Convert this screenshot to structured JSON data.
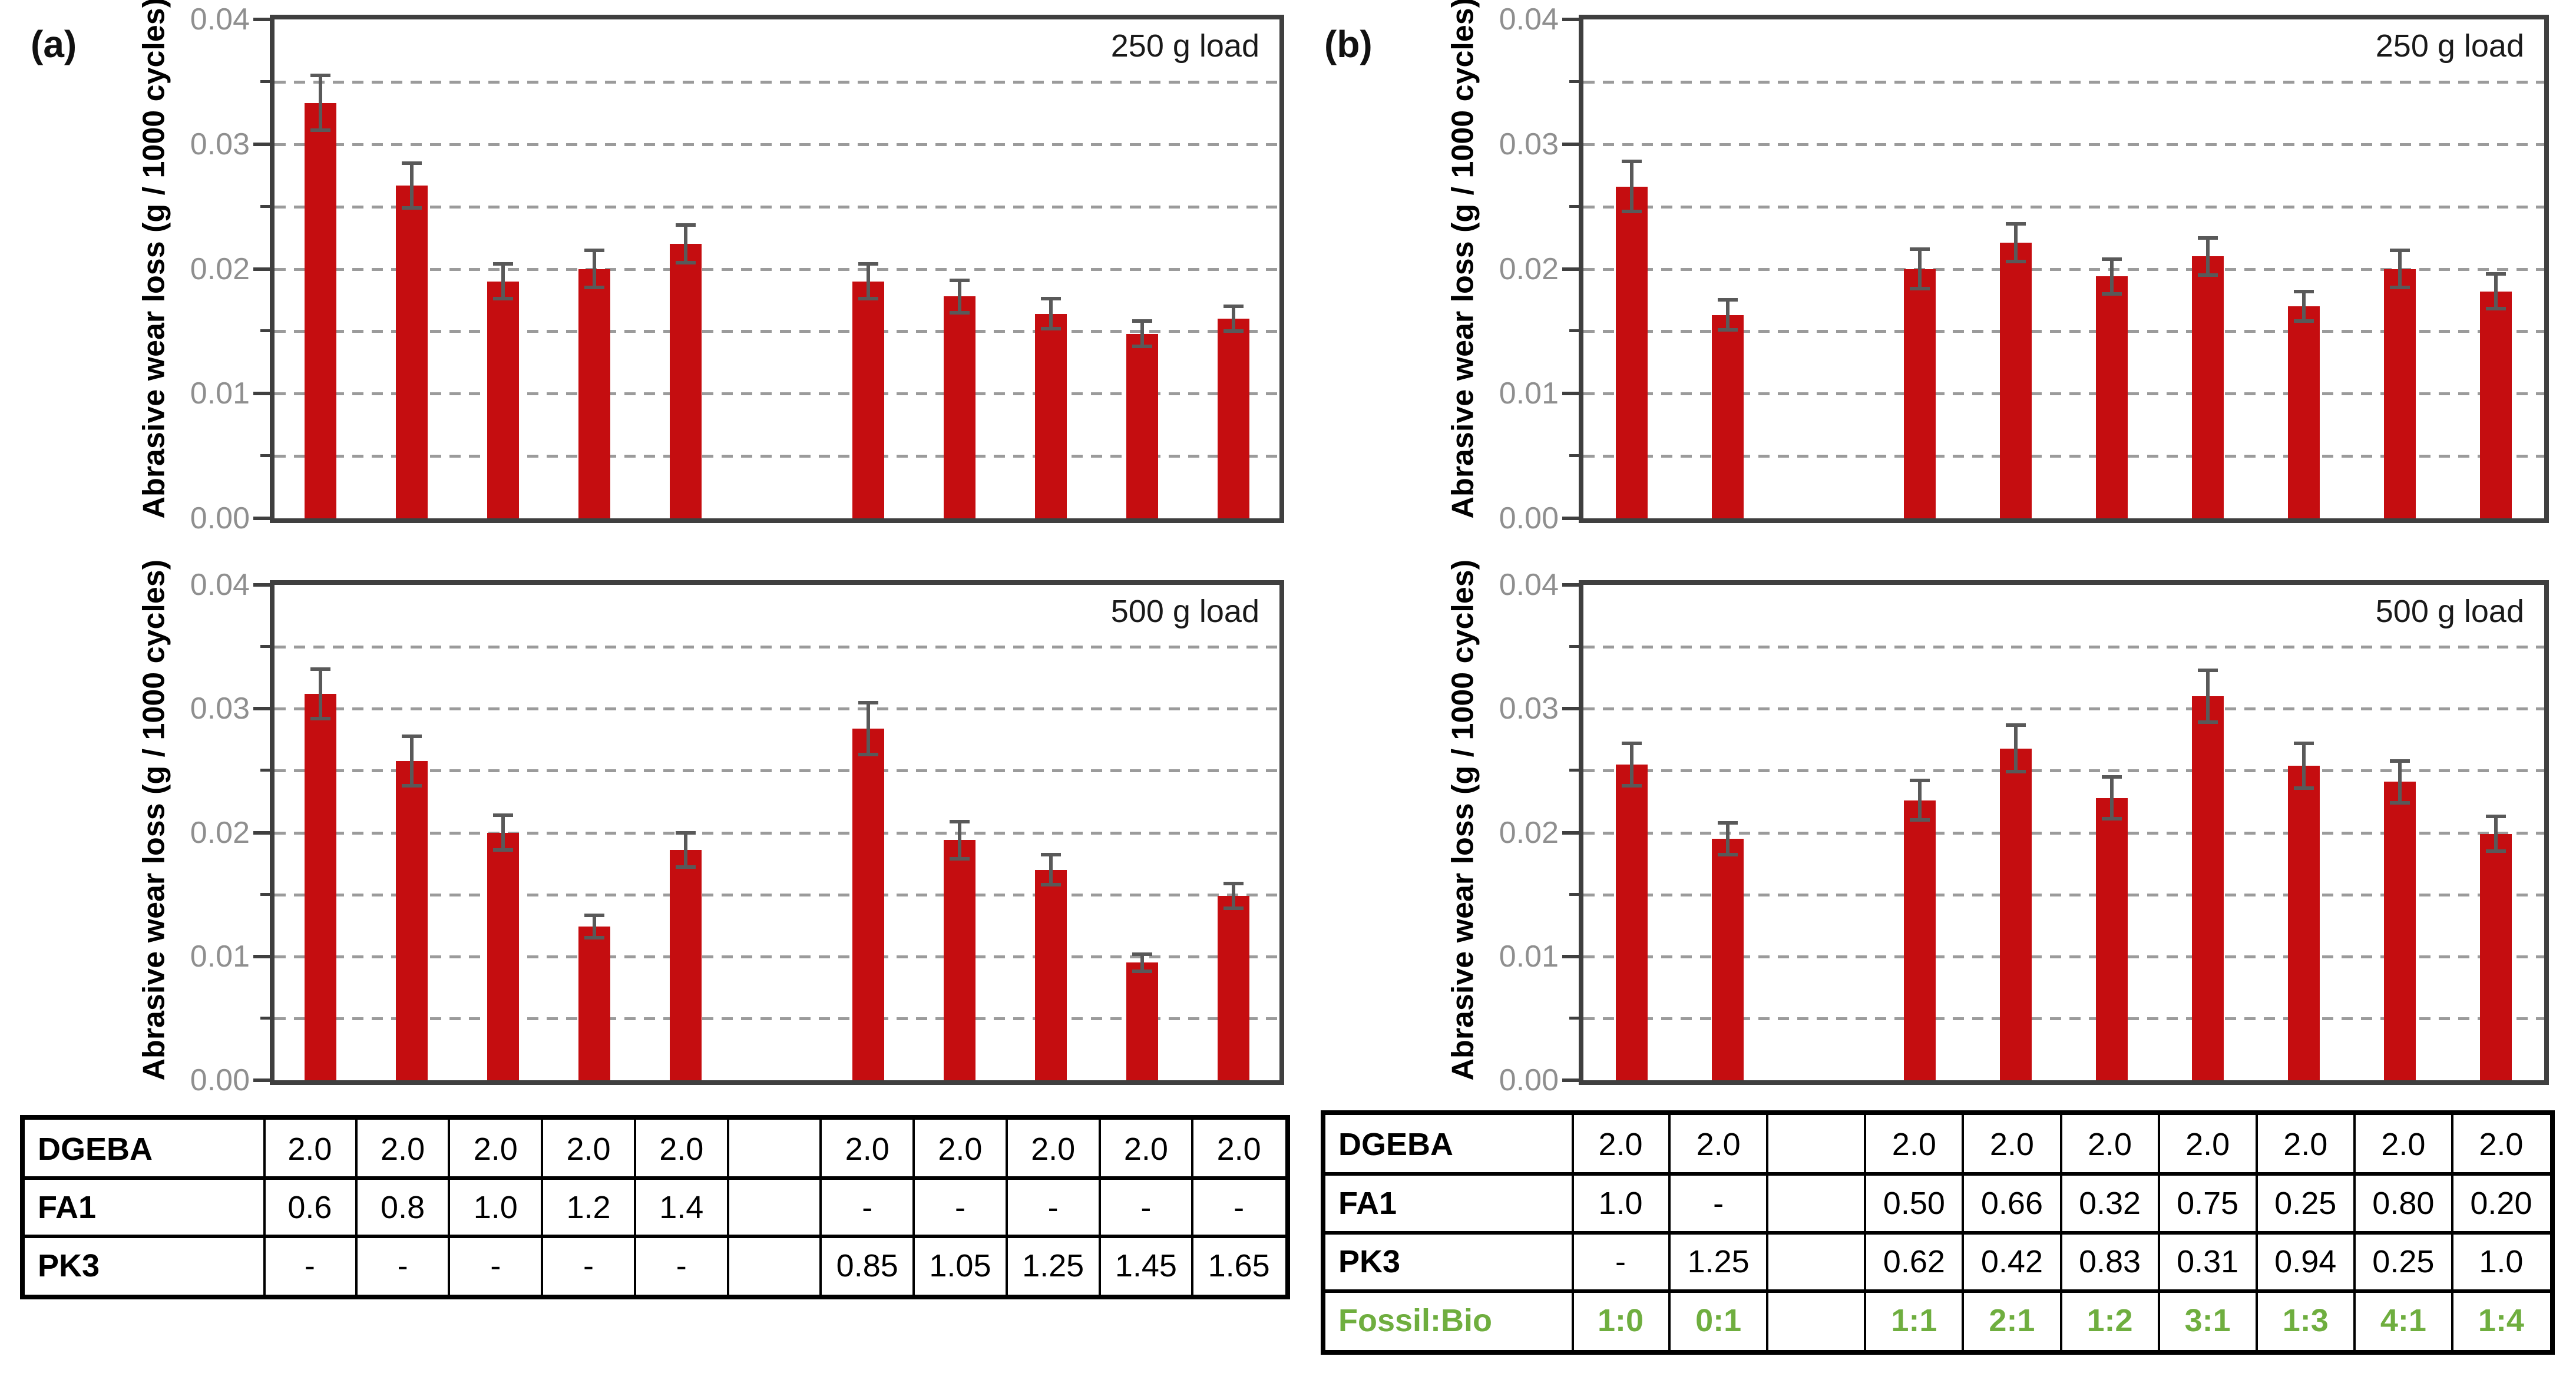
{
  "figure": {
    "panels": [
      {
        "label": "(a)",
        "charts": [
          {
            "load_label": "250 g load"
          },
          {
            "load_label": "500 g load"
          }
        ],
        "table": {
          "n_columns": 11,
          "rows": [
            {
              "label": "DGEBA",
              "color": "#000000",
              "bold_values": false,
              "values": [
                "2.0",
                "2.0",
                "2.0",
                "2.0",
                "2.0",
                "",
                "2.0",
                "2.0",
                "2.0",
                "2.0",
                "2.0"
              ]
            },
            {
              "label": "FA1",
              "color": "#000000",
              "bold_values": false,
              "values": [
                "0.6",
                "0.8",
                "1.0",
                "1.2",
                "1.4",
                "",
                "-",
                "-",
                "-",
                "-",
                "-"
              ]
            },
            {
              "label": "PK3",
              "color": "#000000",
              "bold_values": false,
              "values": [
                "-",
                "-",
                "-",
                "-",
                "-",
                "",
                "0.85",
                "1.05",
                "1.25",
                "1.45",
                "1.65"
              ]
            }
          ]
        }
      },
      {
        "label": "(b)",
        "charts": [
          {
            "load_label": "250 g load"
          },
          {
            "load_label": "500 g load"
          }
        ],
        "table": {
          "n_columns": 10,
          "rows": [
            {
              "label": "DGEBA",
              "color": "#000000",
              "bold_values": false,
              "values": [
                "2.0",
                "2.0",
                "",
                "2.0",
                "2.0",
                "2.0",
                "2.0",
                "2.0",
                "2.0",
                "2.0"
              ]
            },
            {
              "label": "FA1",
              "color": "#000000",
              "bold_values": false,
              "values": [
                "1.0",
                "-",
                "",
                "0.50",
                "0.66",
                "0.32",
                "0.75",
                "0.25",
                "0.80",
                "0.20"
              ]
            },
            {
              "label": "PK3",
              "color": "#000000",
              "bold_values": false,
              "values": [
                "-",
                "1.25",
                "",
                "0.62",
                "0.42",
                "0.83",
                "0.31",
                "0.94",
                "0.25",
                "1.0"
              ]
            },
            {
              "label": "Fossil:Bio",
              "color": "#6fae3f",
              "bold_values": true,
              "values": [
                "1:0",
                "0:1",
                "",
                "1:1",
                "2:1",
                "1:2",
                "3:1",
                "1:3",
                "4:1",
                "1:4"
              ]
            }
          ]
        }
      }
    ],
    "colors": {
      "bar": "#c50d10",
      "error_bar": "#595959",
      "frame": "#3f3f3f",
      "gridline": "#9b9b9b",
      "tick_label": "#8f8f8f",
      "table_border": "#000000",
      "fossil_bio_green": "#6fae3f"
    }
  },
  "chart_data": [
    {
      "panel": "a",
      "type": "bar",
      "load_label": "250 g load",
      "title": "250 g load",
      "xlabel": "",
      "ylabel": "Abrasive wear loss (g / 1000 cycles)",
      "ylim": [
        0,
        0.04
      ],
      "ytick_interval": 0.01,
      "grid_interval": 0.005,
      "ytick_labels": [
        "0.04",
        "0.03",
        "0.02",
        "0.01",
        "0.00"
      ],
      "grid": "dashed",
      "legend": "none",
      "n_slots": 11,
      "values": [
        0.0333,
        0.0267,
        0.019,
        0.02,
        0.022,
        null,
        0.019,
        0.0178,
        0.0164,
        0.0148,
        0.016
      ],
      "errors": [
        0.0022,
        0.0018,
        0.0014,
        0.0015,
        0.0015,
        null,
        0.0014,
        0.0013,
        0.0012,
        0.001,
        0.001
      ]
    },
    {
      "panel": "a",
      "type": "bar",
      "load_label": "500 g load",
      "title": "500 g load",
      "xlabel": "",
      "ylabel": "Abrasive wear loss (g / 1000 cycles)",
      "ylim": [
        0,
        0.04
      ],
      "ytick_interval": 0.01,
      "grid_interval": 0.005,
      "ytick_labels": [
        "0.04",
        "0.03",
        "0.02",
        "0.01",
        "0.00"
      ],
      "grid": "dashed",
      "legend": "none",
      "n_slots": 11,
      "values": [
        0.0312,
        0.0258,
        0.02,
        0.0124,
        0.0186,
        null,
        0.0284,
        0.0194,
        0.017,
        0.0095,
        0.0149
      ],
      "errors": [
        0.002,
        0.002,
        0.0014,
        0.0009,
        0.0014,
        null,
        0.0021,
        0.0015,
        0.0012,
        0.0007,
        0.001
      ]
    },
    {
      "panel": "b",
      "type": "bar",
      "load_label": "250 g load",
      "title": "250 g load",
      "xlabel": "",
      "ylabel": "Abrasive wear loss (g / 1000 cycles)",
      "ylim": [
        0,
        0.04
      ],
      "ytick_interval": 0.01,
      "grid_interval": 0.005,
      "ytick_labels": [
        "0.04",
        "0.03",
        "0.02",
        "0.01",
        "0.00"
      ],
      "grid": "dashed",
      "legend": "none",
      "n_slots": 10,
      "values": [
        0.0266,
        0.0163,
        null,
        0.02,
        0.0221,
        0.0194,
        0.021,
        0.017,
        0.02,
        0.0182
      ],
      "errors": [
        0.002,
        0.0012,
        null,
        0.0016,
        0.0015,
        0.0014,
        0.0015,
        0.0012,
        0.0015,
        0.0014
      ]
    },
    {
      "panel": "b",
      "type": "bar",
      "load_label": "500 g load",
      "title": "500 g load",
      "xlabel": "",
      "ylabel": "Abrasive wear loss (g / 1000 cycles)",
      "ylim": [
        0,
        0.04
      ],
      "ytick_interval": 0.01,
      "grid_interval": 0.005,
      "ytick_labels": [
        "0.04",
        "0.03",
        "0.02",
        "0.01",
        "0.00"
      ],
      "grid": "dashed",
      "legend": "none",
      "n_slots": 10,
      "values": [
        0.0255,
        0.0195,
        null,
        0.0226,
        0.0268,
        0.0228,
        0.031,
        0.0254,
        0.0241,
        0.0199
      ],
      "errors": [
        0.0017,
        0.0013,
        null,
        0.0016,
        0.0019,
        0.0017,
        0.0021,
        0.0018,
        0.0017,
        0.0014
      ]
    }
  ]
}
